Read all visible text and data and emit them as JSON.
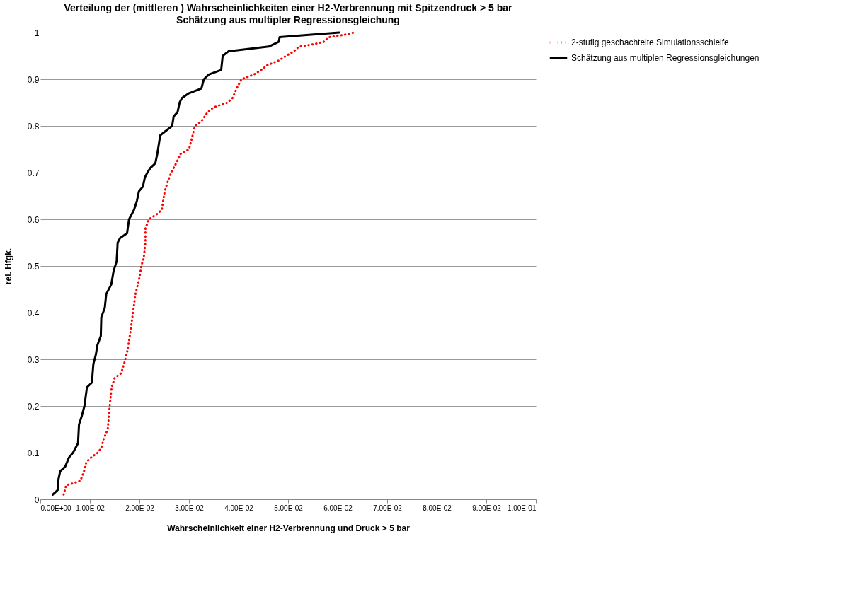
{
  "chart_data": {
    "type": "line",
    "title": "Verteilung der (mittleren ) Wahrscheinlichkeiten einer H2-Verbrennung  mit Spitzendruck > 5 bar",
    "subtitle": "Schätzung aus multipler  Regressionsgleichung",
    "xlabel": "Wahrscheinlichkeit  einer H2-Verbrennung  und Druck  > 5 bar",
    "ylabel": "rel. Hfgk.",
    "xlim": [
      0,
      0.1
    ],
    "xticks": [
      {
        "value": 0,
        "label": "0.00E+00"
      },
      {
        "value": 0.01,
        "label": "1.00E-02"
      },
      {
        "value": 0.02,
        "label": "2.00E-02"
      },
      {
        "value": 0.03,
        "label": "3.00E-02"
      },
      {
        "value": 0.04,
        "label": "4.00E-02"
      },
      {
        "value": 0.05,
        "label": "5.00E-02"
      },
      {
        "value": 0.06,
        "label": "6.00E-02"
      },
      {
        "value": 0.07,
        "label": "7.00E-02"
      },
      {
        "value": 0.08,
        "label": "8.00E-02"
      },
      {
        "value": 0.09,
        "label": "9.00E-02"
      },
      {
        "value": 0.1,
        "label": "1.00E-01"
      }
    ],
    "ylim": [
      0,
      1
    ],
    "yticks": [
      0,
      0.1,
      0.2,
      0.3,
      0.4,
      0.5,
      0.6,
      0.7,
      0.8,
      0.9,
      1
    ],
    "grid": "y",
    "legend": "right",
    "series": [
      {
        "name": "2-stufig geschachtelte Simulationsschleife",
        "color": "#ff0000",
        "line_style": "dotted",
        "x": [
          0.0047,
          0.0052,
          0.0068,
          0.0081,
          0.0088,
          0.0093,
          0.0103,
          0.0116,
          0.0123,
          0.0128,
          0.0136,
          0.014,
          0.0144,
          0.015,
          0.0163,
          0.0169,
          0.0176,
          0.0182,
          0.0187,
          0.0192,
          0.0199,
          0.0204,
          0.0209,
          0.0212,
          0.0212,
          0.0219,
          0.0234,
          0.0245,
          0.0251,
          0.0257,
          0.0264,
          0.0274,
          0.0283,
          0.03,
          0.0305,
          0.0312,
          0.0325,
          0.0338,
          0.035,
          0.0378,
          0.0388,
          0.0396,
          0.0406,
          0.0431,
          0.0446,
          0.0458,
          0.0481,
          0.0496,
          0.0512,
          0.0522,
          0.0552,
          0.0572,
          0.0582,
          0.0613,
          0.0633
        ],
        "values": [
          0.01,
          0.03,
          0.035,
          0.04,
          0.06,
          0.08,
          0.09,
          0.1,
          0.11,
          0.13,
          0.15,
          0.2,
          0.24,
          0.26,
          0.27,
          0.29,
          0.32,
          0.36,
          0.4,
          0.44,
          0.47,
          0.5,
          0.52,
          0.55,
          0.58,
          0.6,
          0.61,
          0.62,
          0.66,
          0.68,
          0.7,
          0.72,
          0.74,
          0.75,
          0.77,
          0.8,
          0.81,
          0.83,
          0.84,
          0.85,
          0.86,
          0.88,
          0.9,
          0.91,
          0.92,
          0.93,
          0.94,
          0.95,
          0.96,
          0.97,
          0.975,
          0.98,
          0.99,
          0.995,
          1.0
        ]
      },
      {
        "name": "Schätzung aus multiplen Regressionsgleichungen",
        "color": "#000000",
        "line_style": "solid",
        "x": [
          0.0025,
          0.0035,
          0.0036,
          0.004,
          0.005,
          0.0058,
          0.0066,
          0.0076,
          0.0078,
          0.0084,
          0.0089,
          0.0094,
          0.0104,
          0.0107,
          0.0112,
          0.0115,
          0.0122,
          0.0123,
          0.013,
          0.0133,
          0.0143,
          0.0148,
          0.0154,
          0.0156,
          0.0161,
          0.0175,
          0.0179,
          0.0189,
          0.0195,
          0.0199,
          0.0207,
          0.0211,
          0.0216,
          0.0222,
          0.0232,
          0.0236,
          0.0239,
          0.0242,
          0.0266,
          0.0269,
          0.0277,
          0.0281,
          0.0286,
          0.03,
          0.0325,
          0.033,
          0.034,
          0.0365,
          0.0368,
          0.038,
          0.0461,
          0.0481,
          0.0483,
          0.0542,
          0.0603
        ],
        "values": [
          0.01,
          0.02,
          0.04,
          0.06,
          0.07,
          0.09,
          0.1,
          0.12,
          0.16,
          0.18,
          0.2,
          0.24,
          0.25,
          0.29,
          0.31,
          0.33,
          0.35,
          0.39,
          0.41,
          0.44,
          0.46,
          0.49,
          0.51,
          0.55,
          0.56,
          0.57,
          0.6,
          0.62,
          0.64,
          0.66,
          0.67,
          0.69,
          0.7,
          0.71,
          0.72,
          0.74,
          0.76,
          0.78,
          0.8,
          0.82,
          0.83,
          0.85,
          0.86,
          0.87,
          0.88,
          0.9,
          0.91,
          0.92,
          0.95,
          0.96,
          0.97,
          0.98,
          0.99,
          0.995,
          1.0
        ]
      }
    ]
  }
}
